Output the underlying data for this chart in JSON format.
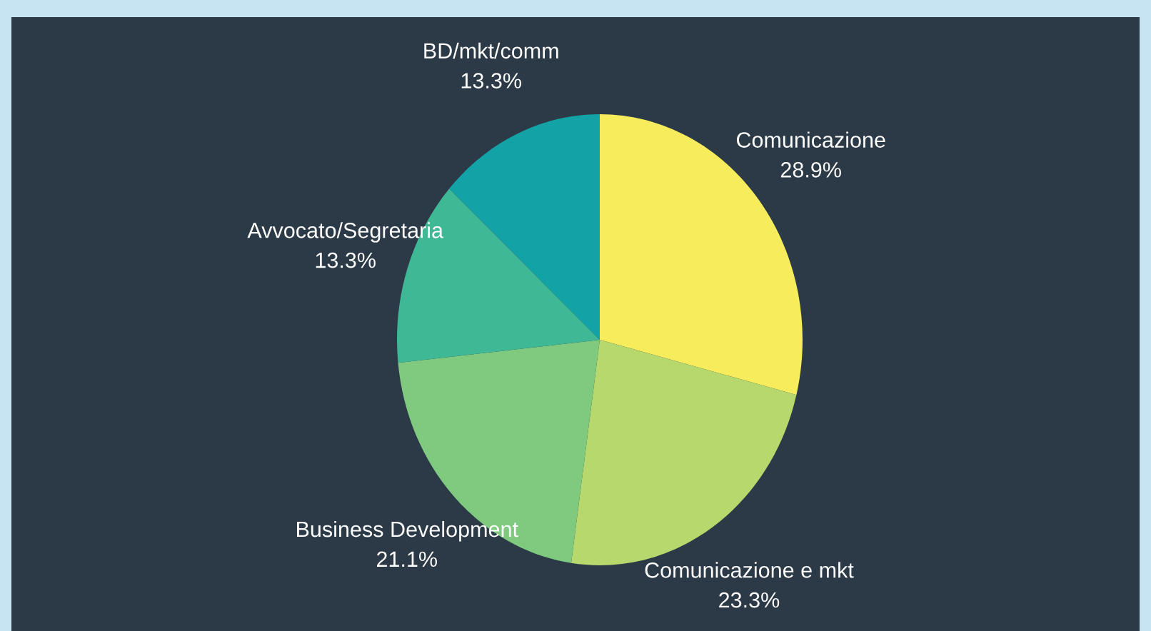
{
  "chart_data": {
    "type": "pie",
    "categories": [
      "Comunicazione",
      "Comunicazione e mkt",
      "Business Development",
      "Avvocato/Segretaria",
      "BD/mkt/comm"
    ],
    "values": [
      28.9,
      23.3,
      21.1,
      13.3,
      13.3
    ],
    "value_labels": [
      "28.9%",
      "23.3%",
      "21.1%",
      "13.3%",
      "13.3%"
    ],
    "colors": [
      "#f6ec5c",
      "#b6d86c",
      "#7fca7e",
      "#3fb896",
      "#13a3a6"
    ],
    "legend": false
  }
}
